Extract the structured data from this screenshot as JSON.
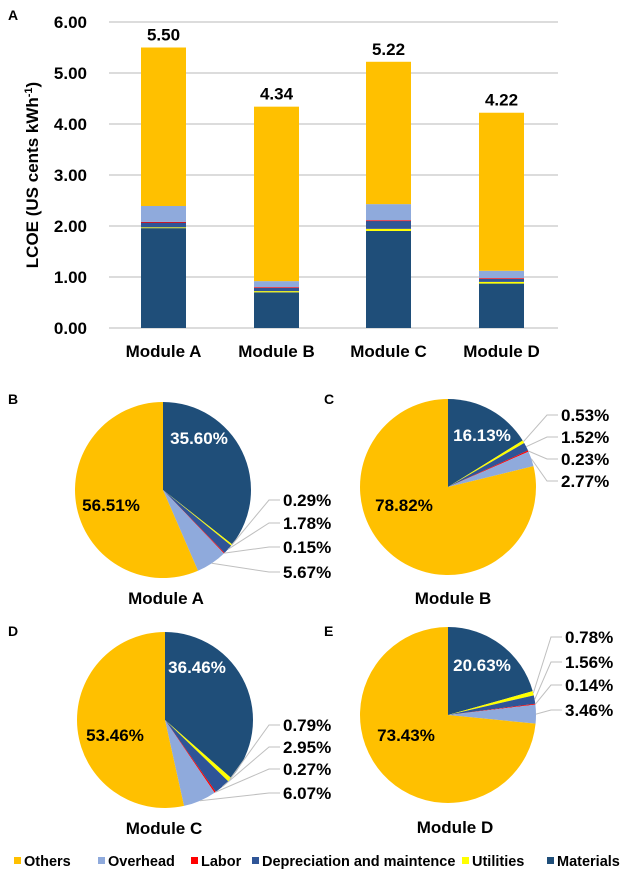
{
  "colors": {
    "Others": "#FFC000",
    "Overhead": "#8FAADC",
    "Labor": "#FF0000",
    "Depreciation and maintence": "#2F5597",
    "Utilities": "#FFFF00",
    "Materials": "#1F4E79"
  },
  "legend": [
    "Others",
    "Overhead",
    "Labor",
    "Depreciation and maintence",
    "Utilities",
    "Materials"
  ],
  "chart_data": [
    {
      "type": "bar",
      "stacked": true,
      "panel": "A",
      "ylabel": "LCOE (US cents kWh",
      "ylabel_sup": "-1",
      "ylabel_close": ")",
      "ylim": [
        0,
        6
      ],
      "yticks": [
        "0.00",
        "1.00",
        "2.00",
        "3.00",
        "4.00",
        "5.00",
        "6.00"
      ],
      "grid": true,
      "categories": [
        "Module A",
        "Module B",
        "Module C",
        "Module D"
      ],
      "totals": [
        "5.50",
        "4.34",
        "5.22",
        "4.22"
      ],
      "series": [
        {
          "name": "Materials",
          "values": [
            1.958,
            0.7,
            1.903,
            0.871
          ]
        },
        {
          "name": "Utilities",
          "values": [
            0.016,
            0.023,
            0.041,
            0.033
          ]
        },
        {
          "name": "Depreciation and maintence",
          "values": [
            0.098,
            0.066,
            0.154,
            0.066
          ]
        },
        {
          "name": "Labor",
          "values": [
            0.008,
            0.01,
            0.014,
            0.006
          ]
        },
        {
          "name": "Overhead",
          "values": [
            0.312,
            0.12,
            0.317,
            0.146
          ]
        },
        {
          "name": "Others",
          "values": [
            3.108,
            3.421,
            2.791,
            3.099
          ]
        }
      ]
    },
    {
      "type": "pie",
      "panel": "B",
      "title": "Module A",
      "slices": [
        {
          "name": "Materials",
          "value": 35.6,
          "label": "35.60%"
        },
        {
          "name": "Utilities",
          "value": 0.29,
          "label": "0.29%"
        },
        {
          "name": "Depreciation and maintence",
          "value": 1.78,
          "label": "1.78%"
        },
        {
          "name": "Labor",
          "value": 0.15,
          "label": "0.15%"
        },
        {
          "name": "Overhead",
          "value": 5.67,
          "label": "5.67%"
        },
        {
          "name": "Others",
          "value": 56.51,
          "label": "56.51%"
        }
      ]
    },
    {
      "type": "pie",
      "panel": "C",
      "title": "Module B",
      "slices": [
        {
          "name": "Materials",
          "value": 16.13,
          "label": "16.13%"
        },
        {
          "name": "Utilities",
          "value": 0.53,
          "label": "0.53%"
        },
        {
          "name": "Depreciation and maintence",
          "value": 1.52,
          "label": "1.52%"
        },
        {
          "name": "Labor",
          "value": 0.23,
          "label": "0.23%"
        },
        {
          "name": "Overhead",
          "value": 2.77,
          "label": "2.77%"
        },
        {
          "name": "Others",
          "value": 78.82,
          "label": "78.82%"
        }
      ]
    },
    {
      "type": "pie",
      "panel": "D",
      "title": "Module C",
      "slices": [
        {
          "name": "Materials",
          "value": 36.46,
          "label": "36.46%"
        },
        {
          "name": "Utilities",
          "value": 0.79,
          "label": "0.79%"
        },
        {
          "name": "Depreciation and maintence",
          "value": 2.95,
          "label": "2.95%"
        },
        {
          "name": "Labor",
          "value": 0.27,
          "label": "0.27%"
        },
        {
          "name": "Overhead",
          "value": 6.07,
          "label": "6.07%"
        },
        {
          "name": "Others",
          "value": 53.46,
          "label": "53.46%"
        }
      ]
    },
    {
      "type": "pie",
      "panel": "E",
      "title": "Module D",
      "slices": [
        {
          "name": "Materials",
          "value": 20.63,
          "label": "20.63%"
        },
        {
          "name": "Utilities",
          "value": 0.78,
          "label": "0.78%"
        },
        {
          "name": "Depreciation and maintence",
          "value": 1.56,
          "label": "1.56%"
        },
        {
          "name": "Labor",
          "value": 0.14,
          "label": "0.14%"
        },
        {
          "name": "Overhead",
          "value": 3.46,
          "label": "3.46%"
        },
        {
          "name": "Others",
          "value": 73.43,
          "label": "73.43%"
        }
      ]
    }
  ]
}
